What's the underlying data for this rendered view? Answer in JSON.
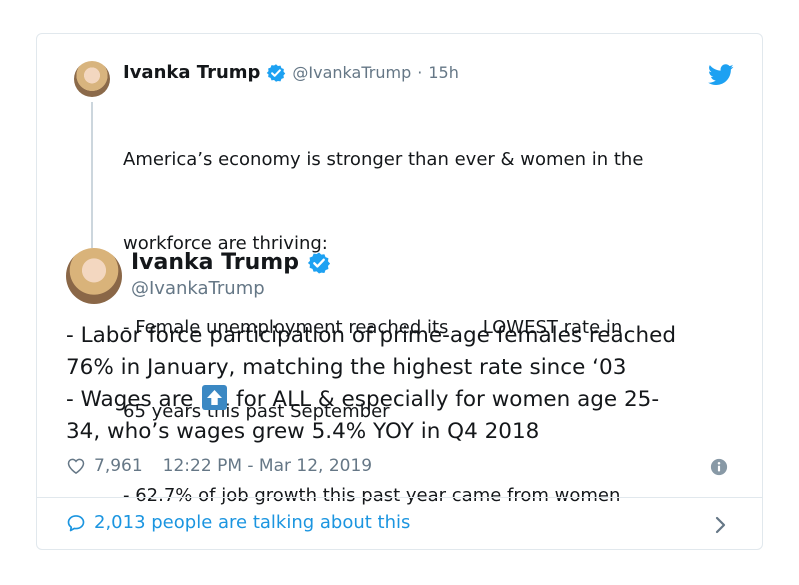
{
  "parent_tweet": {
    "name": "Ivanka Trump",
    "handle": "@IvankaTrump",
    "separator": "·",
    "time": "15h",
    "text_lines": [
      "America’s economy is stronger than ever & women in the",
      "workforce are thriving:",
      "- Female unemployment reached its      LOWEST rate in",
      "65 years this past September",
      "- 62.7% of job growth this past year came from women"
    ]
  },
  "main_tweet": {
    "name": "Ivanka Trump",
    "handle": "@IvankaTrump",
    "line1": "- Labor force participation of prime-age females reached",
    "line2": "76% in January, matching the highest rate since ‘03",
    "line3_before": "- Wages are",
    "line3_after": "for ALL & especially for women age 25-",
    "line4": "34, who’s wages grew 5.4% YOY in Q4 2018",
    "likes": "7,961",
    "timestamp": "12:22 PM - Mar 12, 2019"
  },
  "footer": {
    "talking_text": "2,013 people are talking about this"
  },
  "icons": {
    "verified": "verified-badge-icon",
    "twitter": "twitter-bird-icon",
    "heart": "heart-icon",
    "info": "info-icon",
    "comment": "comment-bubble-icon",
    "chevron": "chevron-right-icon",
    "emoji": "up-arrow-emoji"
  },
  "colors": {
    "twitter_blue": "#1da1f2",
    "link_blue": "#1b95e0",
    "muted_gray": "#657786",
    "text": "#14171a",
    "border": "#e1e8ed"
  }
}
